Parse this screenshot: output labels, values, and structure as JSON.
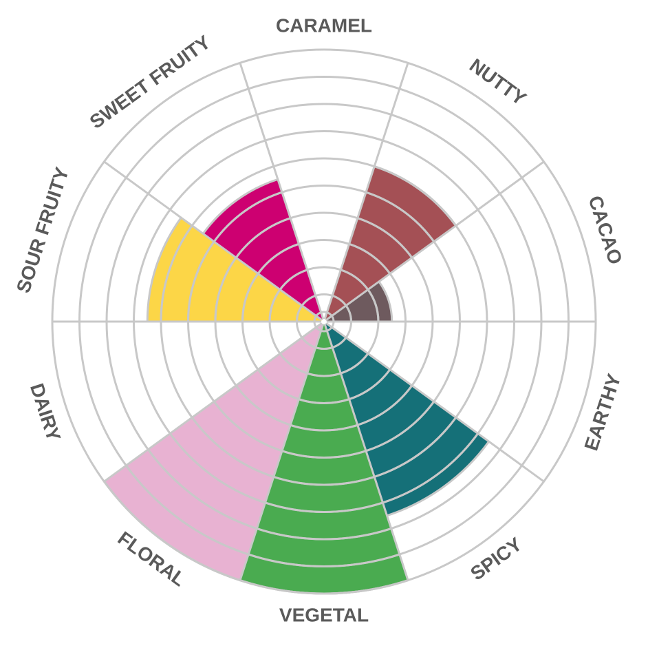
{
  "chart_data": {
    "type": "polar-area",
    "title": "",
    "categories": [
      "CARAMEL",
      "NUTTY",
      "CACAO",
      "EARTHY",
      "SPICY",
      "VEGETAL",
      "FLORAL",
      "DAIRY",
      "SOUR FRUITY",
      "SWEET FRUITY"
    ],
    "values": [
      0,
      6,
      2.5,
      0,
      7.5,
      10,
      10,
      0,
      6.5,
      5.5
    ],
    "colors": [
      "#ffffff",
      "#a45055",
      "#6e5a5e",
      "#ffffff",
      "#157078",
      "#4aab50",
      "#e8b2d2",
      "#ffffff",
      "#fcd647",
      "#cd0071"
    ],
    "rmax": 10,
    "grid": true,
    "grid_color": "#c8c8c8",
    "label_color": "#5a5a5a"
  }
}
